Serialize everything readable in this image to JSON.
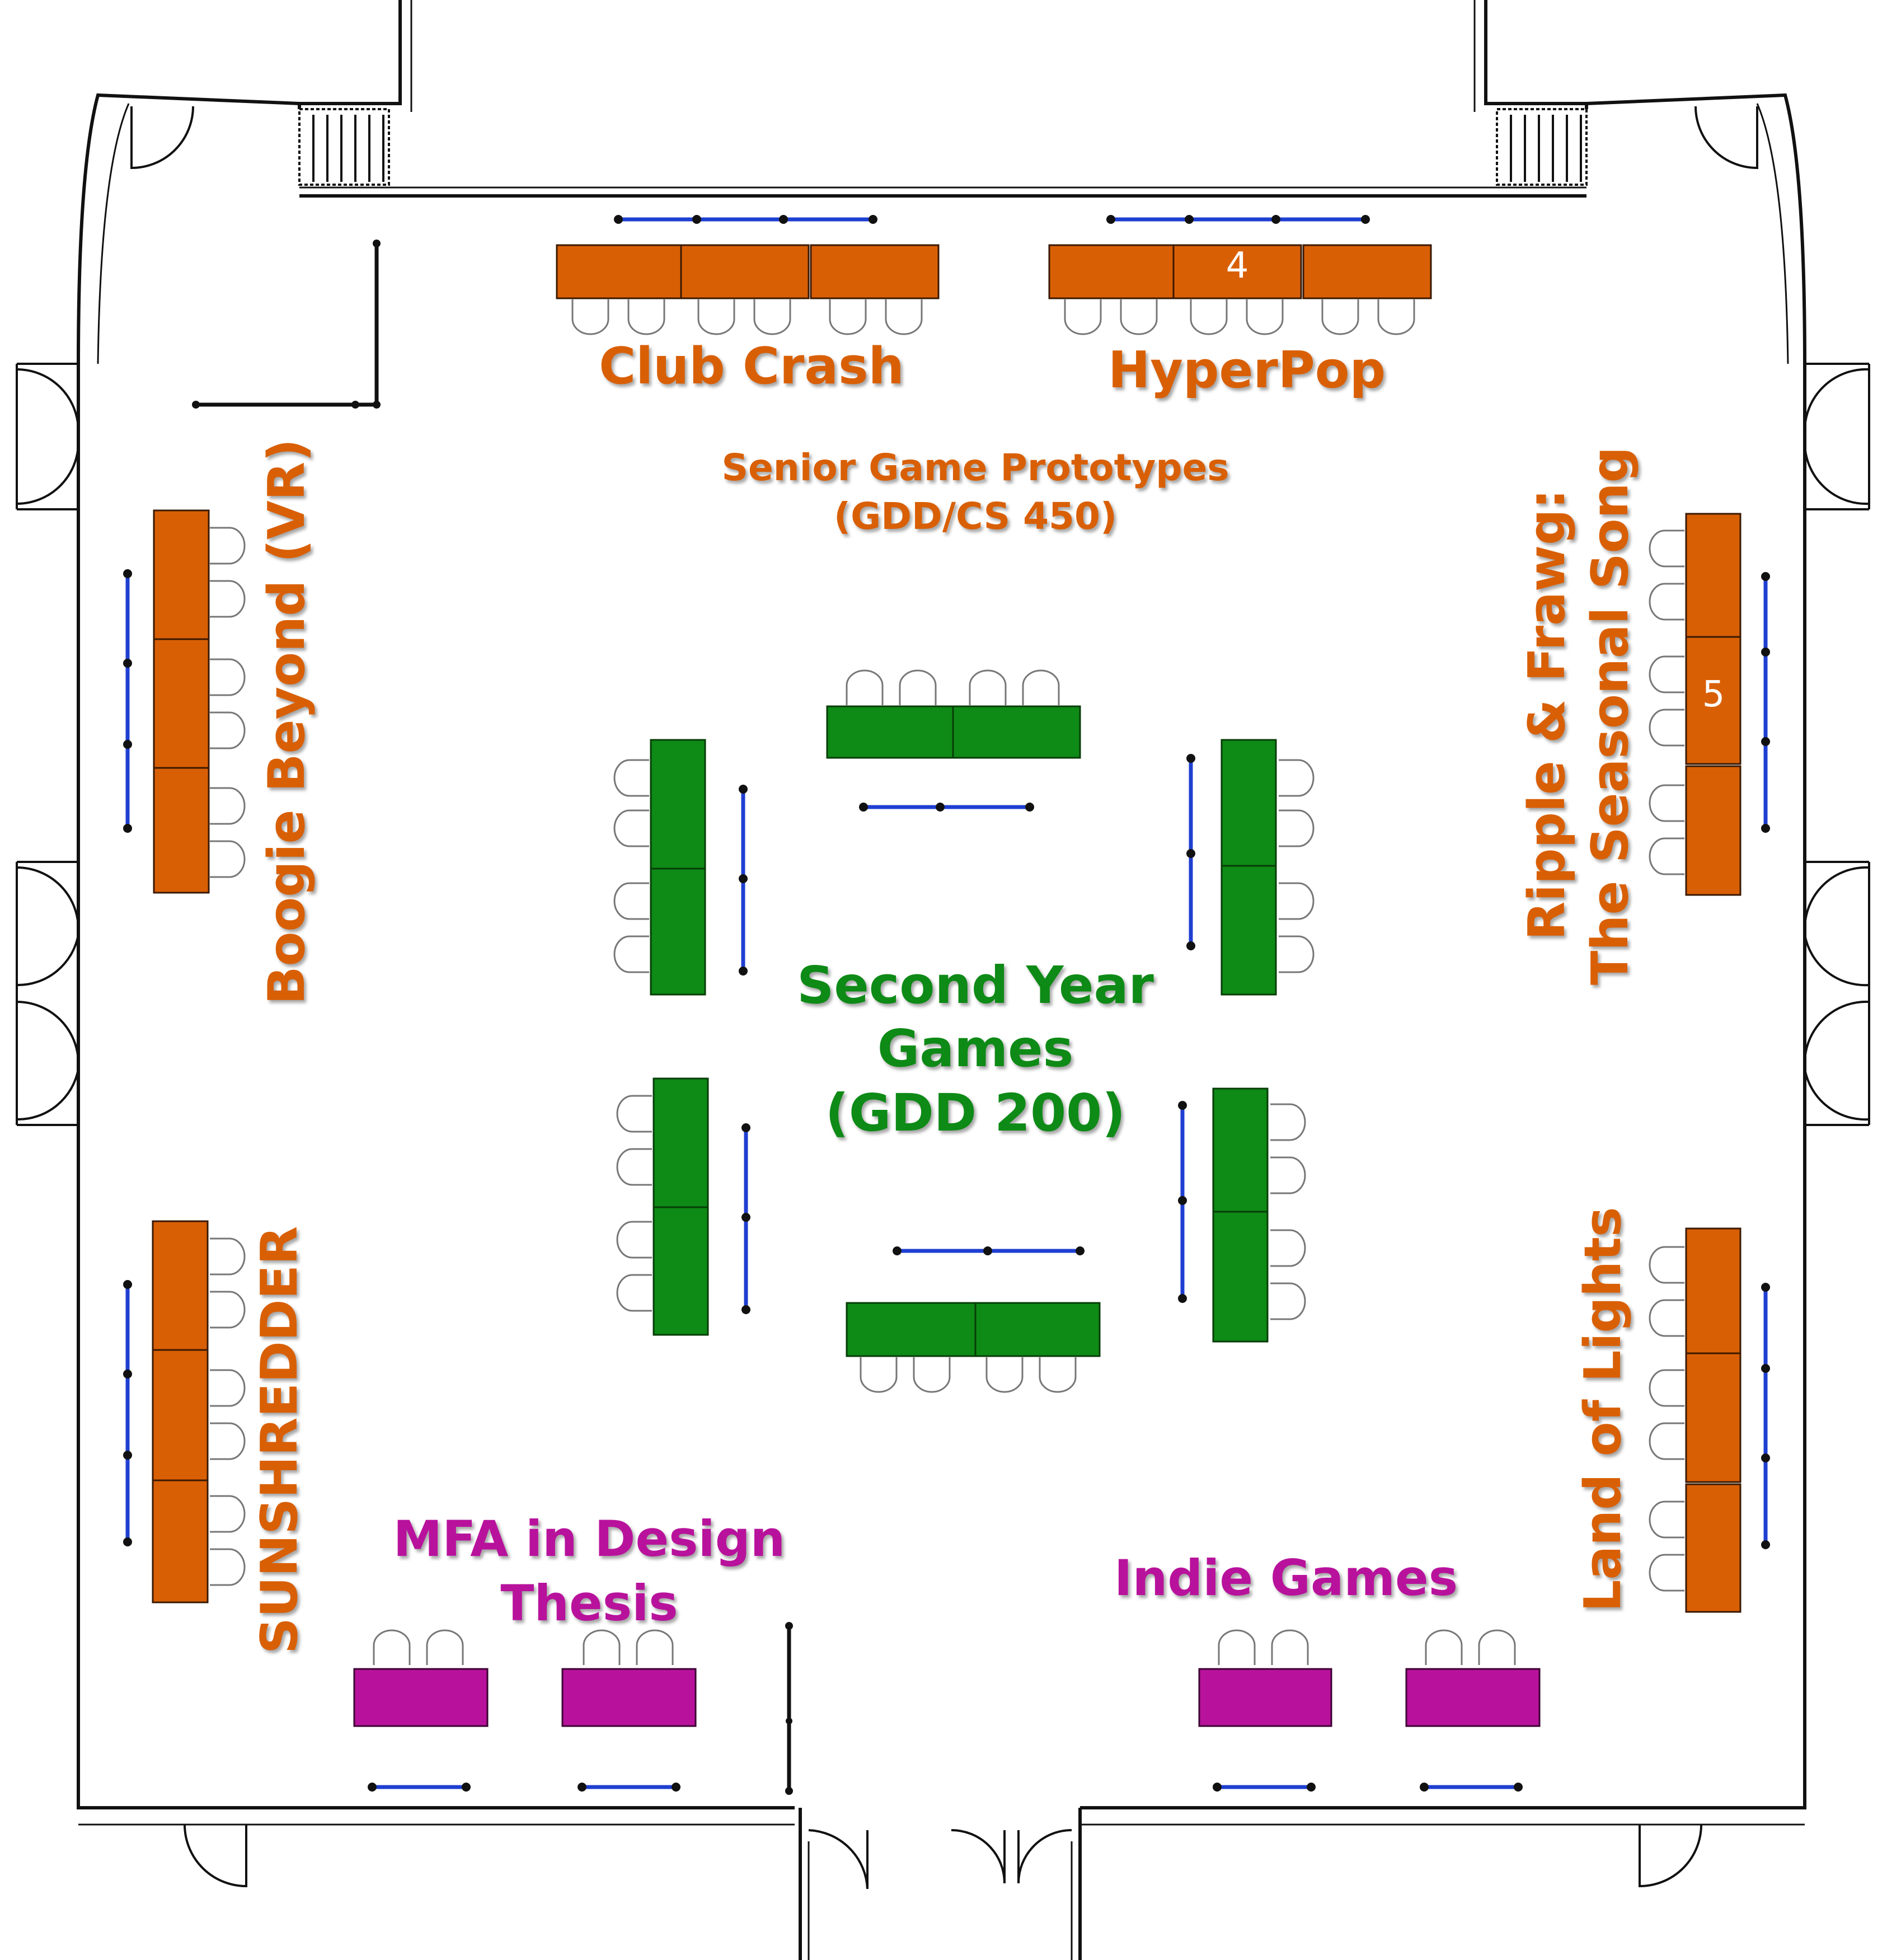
{
  "colors": {
    "senior": "#d95f05",
    "second_year": "#0e8a16",
    "mfa_indie": "#b8129c",
    "divider": "#1f3fd1",
    "wall": "#111111"
  },
  "labels": {
    "club_crash": "Club Crash",
    "hyperpop": "HyperPop",
    "senior_line1": "Senior Game Prototypes",
    "senior_line2": "(GDD/CS 450)",
    "boogie": "Boogie Beyond (VR)",
    "ripple_line1": "Ripple & Frawg:",
    "ripple_line2": "The Seasonal Song",
    "second_line1": "Second Year",
    "second_line2": "Games",
    "second_line3": "(GDD 200)",
    "sunshredder": "SUNSHREDDER",
    "land_of_lights": "Land of Lights",
    "mfa_line1": "MFA in Design",
    "mfa_line2": "Thesis",
    "indie": "Indie Games"
  },
  "table_numbers": {
    "table_4": "4",
    "table_5": "5"
  }
}
